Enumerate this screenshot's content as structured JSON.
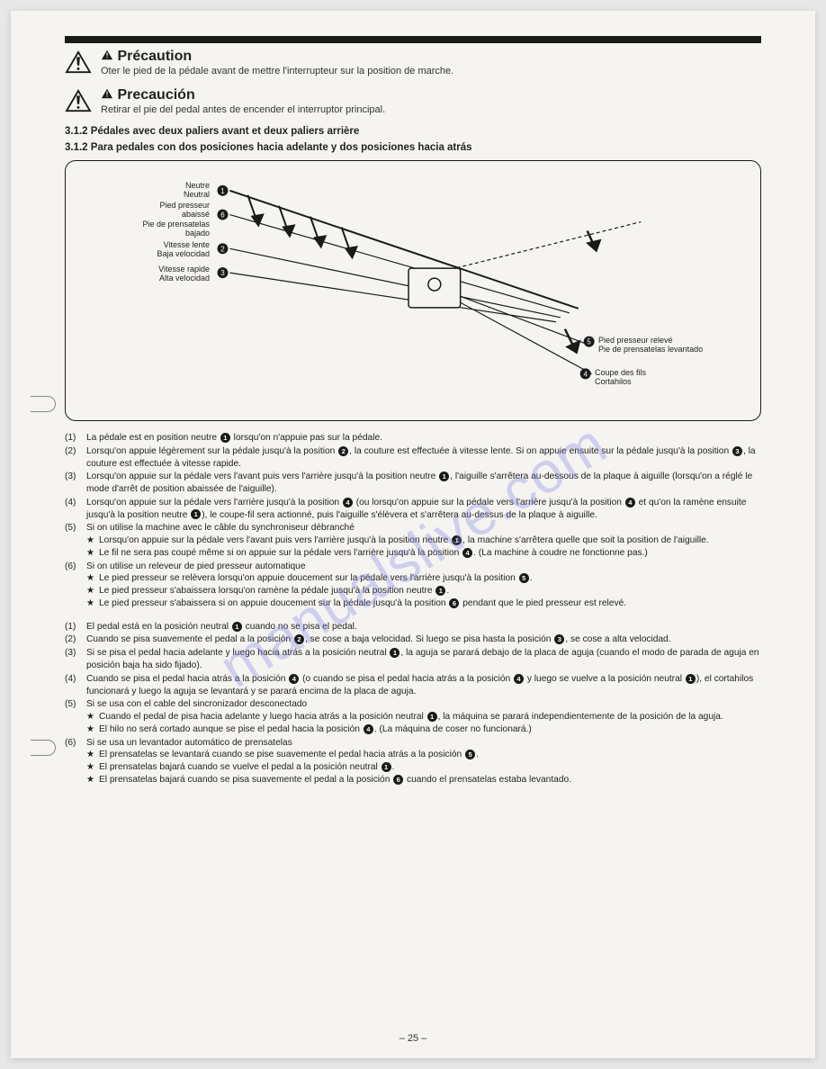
{
  "watermark": "manualslive.com",
  "caution_fr": {
    "title": "Précaution",
    "text": "Oter le pied de la pédale avant de mettre l'interrupteur sur la position de marche."
  },
  "caution_es": {
    "title": "Precaución",
    "text": "Retirar el pie del pedal antes de encender el interruptor principal."
  },
  "heading_fr": "3.1.2 Pédales avec deux paliers avant et deux paliers arrière",
  "heading_es": "3.1.2 Para pedales con dos posiciones hacia adelante y dos posiciones hacia atrás",
  "diagram": {
    "labels": {
      "l1a": "Neutre",
      "l1b": "Neutral",
      "l6a": "Pied presseur",
      "l6b": "abaissé",
      "l6c": "Pie de prensatelas",
      "l6d": "bajado",
      "l2a": "Vitesse lente",
      "l2b": "Baja velocidad",
      "l3a": "Vitesse rapide",
      "l3b": "Alta velocidad",
      "l5a": "Pied presseur relevé",
      "l5b": "Pie de prensatelas levantado",
      "l4a": "Coupe des fils",
      "l4b": "Cortahilos"
    }
  },
  "fr": {
    "i1": "La pédale est en position neutre ❶ lorsqu'on n'appuie pas sur la pédale.",
    "i2": "Lorsqu'on appuie légèrement sur la pédale jusqu'à la position ❷, la couture est effectuée à vitesse lente. Si on appuie ensuite sur la pédale jusqu'à la position ❸, la couture est effectuée à vitesse rapide.",
    "i3": "Lorsqu'on appuie sur la pédale vers l'avant puis vers l'arrière jusqu'à la position neutre ❶, l'aiguille s'arrêtera au-dessous de la plaque à aiguille (lorsqu'on a réglé le mode d'arrêt de position abaissée de l'aiguille).",
    "i4": "Lorsqu'on appuie sur la pédale vers l'arrière jusqu'à la position ❹ (ou lorsqu'on appuie sur la pédale vers l'arrière jusqu'à la position ❹ et qu'on la ramène ensuite jusqu'à la position neutre ❶), le coupe-fil sera actionné, puis l'aiguille s'élèvera et s'arrêtera au-dessus de la plaque à aiguille.",
    "i5": "Si on utilise la machine avec le câble du synchroniseur débranché",
    "i5s1": "Lorsqu'on appuie sur la pédale vers l'avant puis vers l'arrière jusqu'à la position neutre ❶, la machine s'arrêtera quelle que soit la position de l'aiguille.",
    "i5s2": "Le fil ne sera pas coupé même si on appuie sur la pédale vers l'arrière jusqu'à la position ❹. (La machine à coudre ne fonctionne pas.)",
    "i6": "Si on utilise un releveur de pied presseur automatique",
    "i6s1": "Le pied presseur se relèvera lorsqu'on appuie doucement sur la pédale vers l'arrière jusqu'à la position ❺.",
    "i6s2": "Le pied presseur s'abaissera lorsqu'on ramène la pédale jusqu'à la position neutre ❶.",
    "i6s3": "Le pied presseur s'abaissera si on appuie doucement sur la pédale jusqu'à la position ❻ pendant que le pied presseur est relevé."
  },
  "es": {
    "i1": "El pedal está en la posición neutral ❶ cuando no se pisa el pedal.",
    "i2": "Cuando se pisa suavemente el pedal a la posición ❷, se cose a baja velocidad. Si luego se pisa hasta la posición ❸, se cose a alta velocidad.",
    "i3": "Si se pisa el pedal hacia adelante y luego hacia atrás a la posición neutral ❶, la aguja se parará debajo de la placa de aguja (cuando el modo de parada de aguja en posición baja ha sido fijado).",
    "i4": "Cuando se pisa el pedal hacia atrás a la posición ❹ (o cuando se pisa el pedal hacia atrás a la posición ❹ y luego se vuelve a la posición neutral ❶), el cortahilos funcionará y luego la aguja se levantará y se parará encima de la placa de aguja.",
    "i5": "Si se usa con el cable del sincronizador desconectado",
    "i5s1": "Cuando el pedal de pisa hacia adelante y luego hacia atrás a la posición neutral ❶, la máquina se parará independientemente de la posición de la aguja.",
    "i5s2": "El hilo no será cortado aunque se pise el pedal hacia la posición ❹. (La máquina de coser no funcionará.)",
    "i6": "Si se usa un levantador automático de prensatelas",
    "i6s1": "El prensatelas se levantará cuando se pise suavemente el pedal hacia atrás a la posición ❺.",
    "i6s2": "El prensatelas bajará cuando se vuelve el pedal a la posición neutral ❶.",
    "i6s3": "El prensatelas bajará cuando se pisa suavemente el pedal a la posición ❻ cuando el prensatelas estaba levantado."
  },
  "page_num": "– 25 –"
}
